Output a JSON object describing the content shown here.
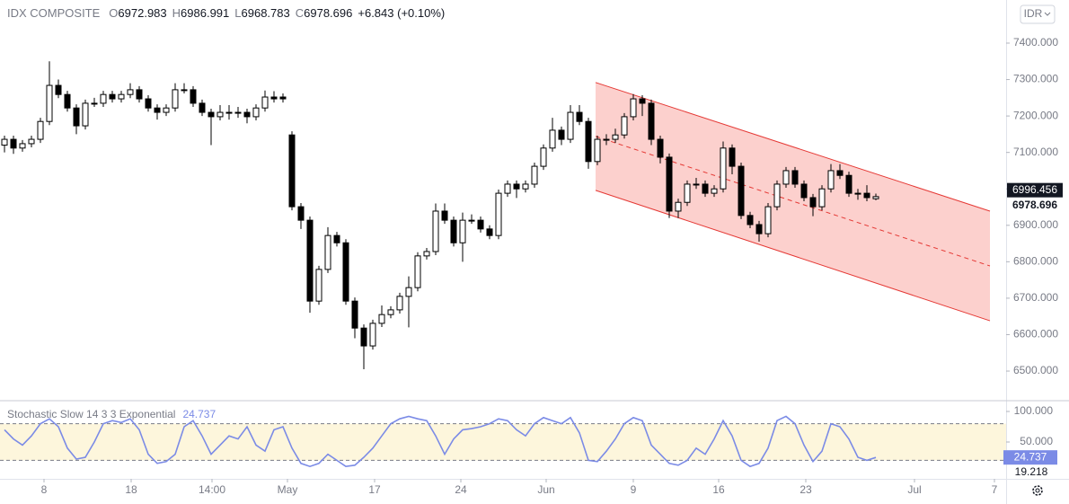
{
  "chart_data": [
    {
      "type": "candlestick",
      "title": "IDX COMPOSITE",
      "ohlc_legend": [
        {
          "label": "O",
          "value": "6972.983"
        },
        {
          "label": "H",
          "value": "6986.991"
        },
        {
          "label": "L",
          "value": "6968.783"
        },
        {
          "label": "C",
          "value": "6978.696"
        }
      ],
      "change": "+6.843 (+0.10%)",
      "currency": "IDR",
      "open": [
        7120,
        7136,
        7112,
        7124,
        7136,
        7185,
        7284,
        7259,
        7222,
        7173,
        7235,
        7235,
        7259,
        7247,
        7259,
        7272,
        7247,
        7222,
        7210,
        7222,
        7272,
        7272,
        7235,
        7210,
        7198,
        7210,
        7210,
        7210,
        7198,
        7222,
        7252,
        7252,
        7148,
        6951,
        6914,
        6692,
        6779,
        6872,
        6852,
        6692,
        6618,
        6569,
        6631,
        6655,
        6668,
        6705,
        6729,
        6816,
        6828,
        6939,
        6914,
        6852,
        6914,
        6914,
        6890,
        6872,
        6988,
        7013,
        7000,
        7013,
        7062,
        7112,
        7161,
        7136,
        7210,
        7185,
        7075,
        7136,
        7136,
        7148,
        7198,
        7247,
        7235,
        7136,
        7087,
        6939,
        6963,
        7013,
        7013,
        6988,
        7000,
        7112,
        7062,
        6927,
        6902,
        6877,
        6951,
        7013,
        7050,
        7013,
        6976,
        6951,
        7000,
        7050,
        7037,
        6988,
        6988,
        6972.983
      ],
      "high": [
        7146,
        7146,
        7134,
        7146,
        7195,
        7350,
        7300,
        7269,
        7232,
        7245,
        7250,
        7269,
        7269,
        7269,
        7290,
        7282,
        7257,
        7232,
        7232,
        7290,
        7290,
        7282,
        7245,
        7220,
        7230,
        7230,
        7225,
        7220,
        7232,
        7270,
        7268,
        7262,
        7158,
        6961,
        6924,
        6789,
        6895,
        6882,
        6862,
        6702,
        6628,
        6641,
        6680,
        6678,
        6715,
        6760,
        6826,
        6838,
        6960,
        6960,
        6924,
        6935,
        6930,
        6924,
        6900,
        6998,
        7023,
        7023,
        7023,
        7072,
        7122,
        7195,
        7171,
        7230,
        7230,
        7195,
        7146,
        7150,
        7165,
        7208,
        7260,
        7257,
        7245,
        7146,
        7097,
        6973,
        7023,
        7030,
        7023,
        7010,
        7130,
        7122,
        7072,
        6937,
        6912,
        6961,
        7023,
        7060,
        7060,
        7023,
        6986,
        7010,
        7068,
        7068,
        7047,
        7000,
        7010,
        6986.991
      ],
      "low": [
        7100,
        7096,
        7102,
        7114,
        7126,
        7175,
        7249,
        7212,
        7150,
        7163,
        7225,
        7225,
        7237,
        7237,
        7249,
        7237,
        7212,
        7190,
        7200,
        7212,
        7262,
        7225,
        7200,
        7120,
        7188,
        7190,
        7195,
        7180,
        7188,
        7212,
        7237,
        7237,
        6941,
        6890,
        6660,
        6682,
        6769,
        6842,
        6682,
        6590,
        6505,
        6559,
        6621,
        6645,
        6658,
        6620,
        6719,
        6806,
        6818,
        6904,
        6842,
        6800,
        6904,
        6880,
        6862,
        6862,
        6978,
        6975,
        6990,
        7003,
        7052,
        7102,
        7120,
        7126,
        7175,
        7055,
        7065,
        7120,
        7126,
        7138,
        7188,
        7200,
        7120,
        7070,
        6920,
        6920,
        6953,
        7000,
        6978,
        6978,
        6990,
        7040,
        6917,
        6892,
        6855,
        6867,
        6941,
        7003,
        7003,
        6966,
        6925,
        6941,
        6990,
        7027,
        6978,
        6970,
        6966,
        6968.783
      ],
      "close": [
        7136,
        7112,
        7124,
        7136,
        7185,
        7284,
        7259,
        7222,
        7173,
        7235,
        7235,
        7259,
        7247,
        7259,
        7272,
        7247,
        7222,
        7210,
        7222,
        7272,
        7272,
        7235,
        7210,
        7198,
        7210,
        7210,
        7210,
        7198,
        7222,
        7252,
        7247,
        7247,
        6951,
        6914,
        6692,
        6779,
        6872,
        6852,
        6692,
        6618,
        6569,
        6631,
        6655,
        6668,
        6705,
        6729,
        6816,
        6828,
        6939,
        6914,
        6852,
        6914,
        6914,
        6890,
        6872,
        6988,
        7013,
        7000,
        7013,
        7062,
        7112,
        7161,
        7136,
        7210,
        7185,
        7075,
        7136,
        7136,
        7148,
        7198,
        7247,
        7235,
        7136,
        7087,
        6939,
        6963,
        7013,
        7013,
        6988,
        7000,
        7112,
        7062,
        6927,
        6902,
        6877,
        6951,
        7013,
        7050,
        7013,
        6976,
        6951,
        7000,
        7050,
        7037,
        6988,
        6988,
        6976,
        6978.696
      ],
      "up_color": "#ffffff",
      "down_color": "#000000",
      "border_color": "#000000",
      "xlim": [
        -0.5,
        111.5
      ],
      "xticks": [
        {
          "value": 4.4,
          "label": "8"
        },
        {
          "value": 14.1,
          "label": "18"
        },
        {
          "value": 23.1,
          "label": "14:00"
        },
        {
          "value": 31.5,
          "label": "May"
        },
        {
          "value": 41.2,
          "label": "17"
        },
        {
          "value": 50.8,
          "label": "24"
        },
        {
          "value": 60.3,
          "label": "Jun"
        },
        {
          "value": 70,
          "label": "9"
        },
        {
          "value": 79.5,
          "label": "16"
        },
        {
          "value": 89.2,
          "label": "23"
        },
        {
          "value": 101.3,
          "label": "Jul"
        },
        {
          "value": 110.2,
          "label": "7"
        }
      ],
      "ylim": [
        6421.2,
        7518.3
      ],
      "yticks": [
        {
          "value": 7400,
          "label": "7400.000"
        },
        {
          "value": 7300,
          "label": "7300.000"
        },
        {
          "value": 7200,
          "label": "7200.000"
        },
        {
          "value": 7100,
          "label": "7100.000"
        },
        {
          "value": 7000,
          "label": "7000.000"
        },
        {
          "value": 6900,
          "label": "6900.000"
        },
        {
          "value": 6800,
          "label": "6800.000"
        },
        {
          "value": 6700,
          "label": "6700.000"
        },
        {
          "value": 6600,
          "label": "6600.000"
        },
        {
          "value": 6500,
          "label": "6500.000"
        }
      ],
      "price_badge": 6996.456,
      "close_label": 6978.696,
      "channel": {
        "x": [
          65.8,
          109.7
        ],
        "upper": [
          7292,
          6939
        ],
        "lower": [
          6996,
          6638
        ],
        "color": "#e53935",
        "fill": "rgba(244,67,54,0.25)"
      }
    },
    {
      "type": "line",
      "name": "Stochastic Slow 14 3 3 Exponential",
      "legend_value": 24.737,
      "color": "#7b8be6",
      "values": [
        70,
        55,
        45,
        60,
        80,
        88,
        75,
        40,
        22,
        25,
        50,
        80,
        85,
        82,
        88,
        70,
        30,
        15,
        18,
        30,
        75,
        85,
        60,
        30,
        45,
        60,
        55,
        75,
        45,
        35,
        70,
        75,
        40,
        15,
        10,
        15,
        30,
        20,
        10,
        12,
        25,
        40,
        60,
        80,
        88,
        92,
        88,
        85,
        60,
        30,
        55,
        70,
        72,
        75,
        80,
        88,
        85,
        70,
        60,
        80,
        90,
        85,
        80,
        90,
        65,
        20,
        18,
        35,
        55,
        80,
        90,
        85,
        45,
        30,
        15,
        12,
        20,
        40,
        30,
        55,
        85,
        60,
        20,
        10,
        15,
        40,
        85,
        92,
        80,
        45,
        18,
        35,
        80,
        75,
        55,
        25,
        20,
        24.737
      ],
      "ylim": [
        -10.3,
        116.2
      ],
      "yticks": [
        {
          "value": 100,
          "label": "100.000"
        },
        {
          "value": 50,
          "label": "50.000"
        }
      ],
      "bands": [
        20,
        80
      ],
      "band_fill": "#fdf6dc",
      "value_badge": 24.737,
      "second_label": 19.218
    }
  ]
}
